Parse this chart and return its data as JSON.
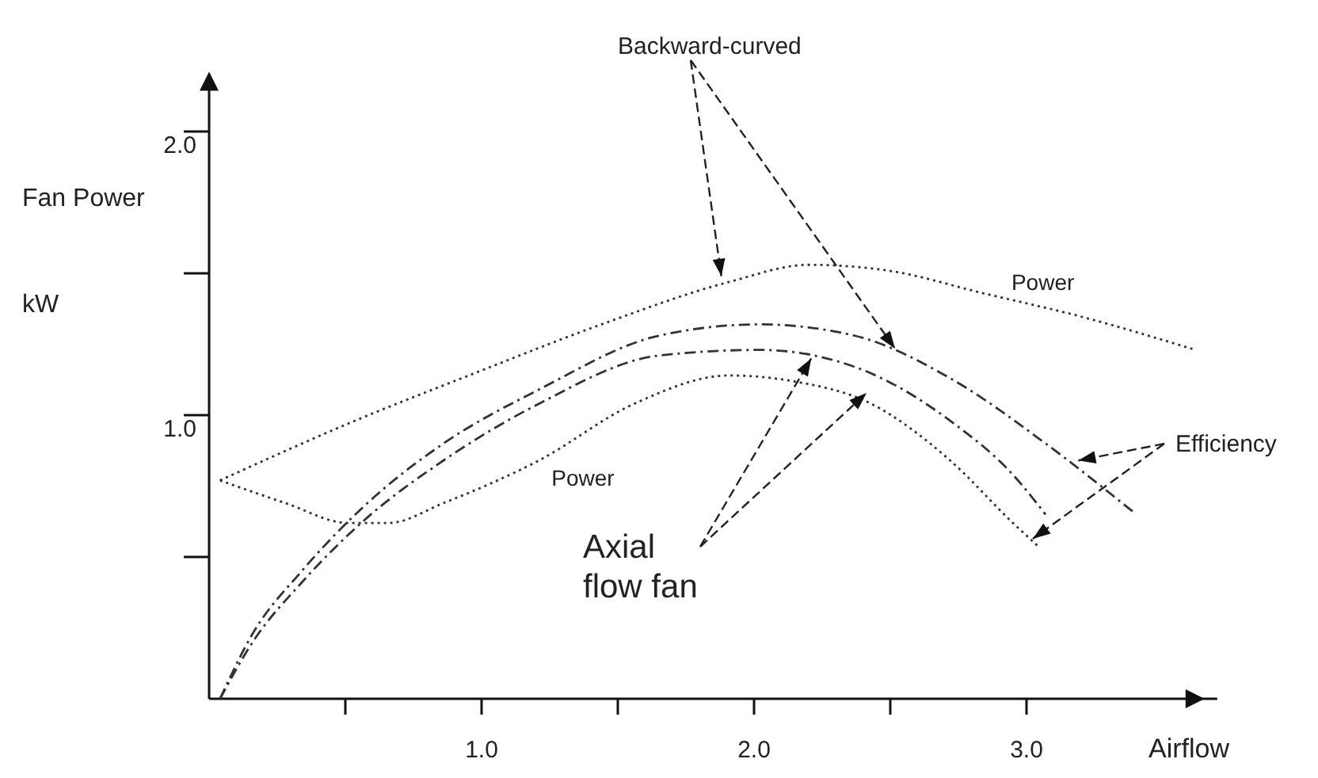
{
  "chart_data": {
    "type": "line",
    "xlabel": "Airflow",
    "ylabel": "Fan Power kW",
    "xlim": [
      0,
      3.7
    ],
    "ylim": [
      0,
      2.2
    ],
    "xticks": [
      {
        "value": 0.5,
        "label": null
      },
      {
        "value": 1,
        "label": "1.0"
      },
      {
        "value": 1.5,
        "label": null
      },
      {
        "value": 2,
        "label": "2.0"
      },
      {
        "value": 2.5,
        "label": null
      },
      {
        "value": 3,
        "label": "3.0"
      }
    ],
    "yticks": [
      {
        "value": 0.5,
        "label": null
      },
      {
        "value": 1,
        "label": "1.0"
      },
      {
        "value": 1.5,
        "label": null
      },
      {
        "value": 2,
        "label": "2.0"
      }
    ],
    "line_style": "dotted",
    "series": [
      {
        "name": "Power",
        "color": "#333333",
        "x": [
          0.04,
          0.51,
          0.98,
          1.44,
          1.91,
          2.2,
          2.49,
          2.84,
          3.19,
          3.62
        ],
        "values": [
          0.77,
          0.97,
          1.15,
          1.32,
          1.47,
          1.53,
          1.51,
          1.43,
          1.35,
          1.23
        ]
      },
      {
        "name": "Power",
        "color": "#333333",
        "x": [
          0.04,
          0.28,
          0.51,
          0.66,
          0.86,
          1.21,
          1.56,
          1.91,
          2.14,
          2.43,
          2.72,
          2.95,
          3.04
        ],
        "values": [
          0.77,
          0.69,
          0.62,
          0.62,
          0.69,
          0.84,
          1.04,
          1.14,
          1.12,
          1.04,
          0.84,
          0.62,
          0.54
        ]
      },
      {
        "color": "#333333",
        "line_style": "dashed",
        "x": [
          0.04,
          0.16,
          0.34,
          0.57,
          0.86,
          1.21,
          1.65,
          2.02,
          2.37,
          2.72,
          3.07,
          3.39
        ],
        "values": [
          0,
          0.23,
          0.45,
          0.68,
          0.9,
          1.09,
          1.28,
          1.32,
          1.28,
          1.13,
          0.9,
          0.66
        ]
      },
      {
        "color": "#333333",
        "line_style": "dashed",
        "x": [
          0.04,
          0.16,
          0.34,
          0.57,
          0.86,
          1.21,
          1.65,
          2.02,
          2.37,
          2.72,
          2.95,
          3.07
        ],
        "values": [
          0,
          0.2,
          0.41,
          0.63,
          0.84,
          1.04,
          1.21,
          1.23,
          1.17,
          0.98,
          0.79,
          0.65
        ]
      }
    ],
    "annotations": [
      {
        "text": "Backward-curved",
        "x": 1.88,
        "y": 1.49
      },
      {
        "text": "Axial flow fan",
        "x": 2.21,
        "y": 1.2
      },
      {
        "text": "Efficiency",
        "x": 3.19,
        "y": 0.84
      }
    ]
  }
}
